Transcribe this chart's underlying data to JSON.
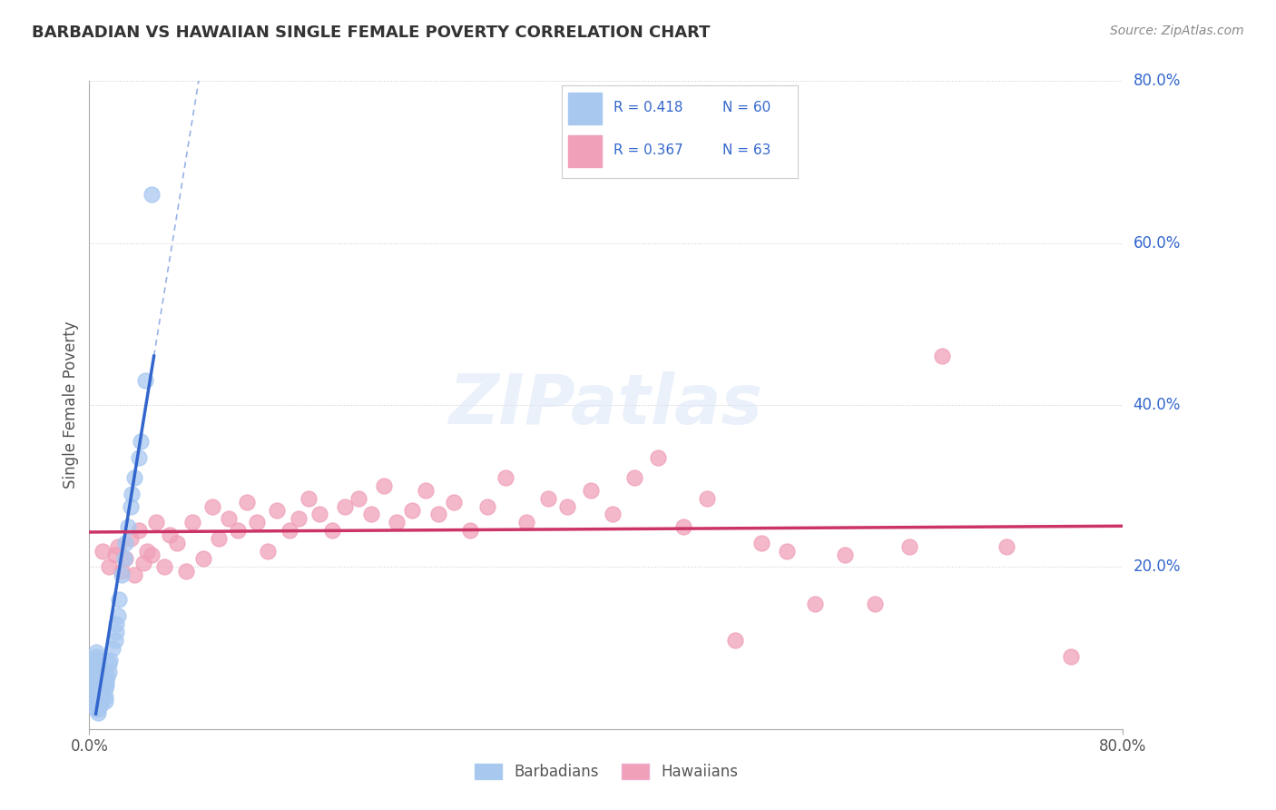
{
  "title": "BARBADIAN VS HAWAIIAN SINGLE FEMALE POVERTY CORRELATION CHART",
  "source": "Source: ZipAtlas.com",
  "ylabel": "Single Female Poverty",
  "right_ytick_labels": [
    "80.0%",
    "60.0%",
    "40.0%",
    "20.0%"
  ],
  "right_ytick_vals": [
    0.8,
    0.6,
    0.4,
    0.2
  ],
  "xlim": [
    0.0,
    0.8
  ],
  "ylim": [
    0.0,
    0.8
  ],
  "barbadian_R": 0.418,
  "barbadian_N": 60,
  "hawaiian_R": 0.367,
  "hawaiian_N": 63,
  "barbadian_color": "#a8c8f0",
  "hawaiian_color": "#f0a0b8",
  "barbadian_line_color": "#3366cc",
  "hawaiian_line_color": "#cc3366",
  "legend_text_color": "#3366cc",
  "background_color": "#ffffff",
  "grid_color": "#cccccc",
  "barbadian_x": [
    0.005,
    0.005,
    0.005,
    0.005,
    0.005,
    0.005,
    0.005,
    0.005,
    0.005,
    0.005,
    0.005,
    0.005,
    0.005,
    0.005,
    0.005,
    0.007,
    0.007,
    0.007,
    0.007,
    0.007,
    0.007,
    0.007,
    0.008,
    0.008,
    0.008,
    0.008,
    0.009,
    0.009,
    0.009,
    0.01,
    0.01,
    0.01,
    0.01,
    0.01,
    0.012,
    0.012,
    0.012,
    0.013,
    0.013,
    0.014,
    0.015,
    0.015,
    0.016,
    0.018,
    0.02,
    0.021,
    0.021,
    0.022,
    0.023,
    0.025,
    0.027,
    0.028,
    0.03,
    0.032,
    0.033,
    0.035,
    0.038,
    0.04,
    0.043,
    0.048
  ],
  "barbadian_y": [
    0.025,
    0.03,
    0.035,
    0.04,
    0.045,
    0.05,
    0.055,
    0.06,
    0.065,
    0.07,
    0.075,
    0.08,
    0.085,
    0.09,
    0.095,
    0.02,
    0.025,
    0.03,
    0.035,
    0.04,
    0.045,
    0.05,
    0.055,
    0.06,
    0.065,
    0.07,
    0.03,
    0.035,
    0.04,
    0.045,
    0.05,
    0.055,
    0.06,
    0.065,
    0.035,
    0.04,
    0.05,
    0.055,
    0.06,
    0.065,
    0.07,
    0.08,
    0.085,
    0.1,
    0.11,
    0.12,
    0.13,
    0.14,
    0.16,
    0.19,
    0.21,
    0.23,
    0.25,
    0.275,
    0.29,
    0.31,
    0.335,
    0.355,
    0.43,
    0.66
  ],
  "hawaiian_x": [
    0.01,
    0.015,
    0.02,
    0.022,
    0.025,
    0.028,
    0.032,
    0.035,
    0.038,
    0.042,
    0.045,
    0.048,
    0.052,
    0.058,
    0.062,
    0.068,
    0.075,
    0.08,
    0.088,
    0.095,
    0.1,
    0.108,
    0.115,
    0.122,
    0.13,
    0.138,
    0.145,
    0.155,
    0.162,
    0.17,
    0.178,
    0.188,
    0.198,
    0.208,
    0.218,
    0.228,
    0.238,
    0.25,
    0.26,
    0.27,
    0.282,
    0.295,
    0.308,
    0.322,
    0.338,
    0.355,
    0.37,
    0.388,
    0.405,
    0.422,
    0.44,
    0.46,
    0.478,
    0.5,
    0.52,
    0.54,
    0.562,
    0.585,
    0.608,
    0.635,
    0.66,
    0.71,
    0.76
  ],
  "hawaiian_y": [
    0.22,
    0.2,
    0.215,
    0.225,
    0.195,
    0.21,
    0.235,
    0.19,
    0.245,
    0.205,
    0.22,
    0.215,
    0.255,
    0.2,
    0.24,
    0.23,
    0.195,
    0.255,
    0.21,
    0.275,
    0.235,
    0.26,
    0.245,
    0.28,
    0.255,
    0.22,
    0.27,
    0.245,
    0.26,
    0.285,
    0.265,
    0.245,
    0.275,
    0.285,
    0.265,
    0.3,
    0.255,
    0.27,
    0.295,
    0.265,
    0.28,
    0.245,
    0.275,
    0.31,
    0.255,
    0.285,
    0.275,
    0.295,
    0.265,
    0.31,
    0.335,
    0.25,
    0.285,
    0.11,
    0.23,
    0.22,
    0.155,
    0.215,
    0.155,
    0.225,
    0.46,
    0.225,
    0.09
  ]
}
